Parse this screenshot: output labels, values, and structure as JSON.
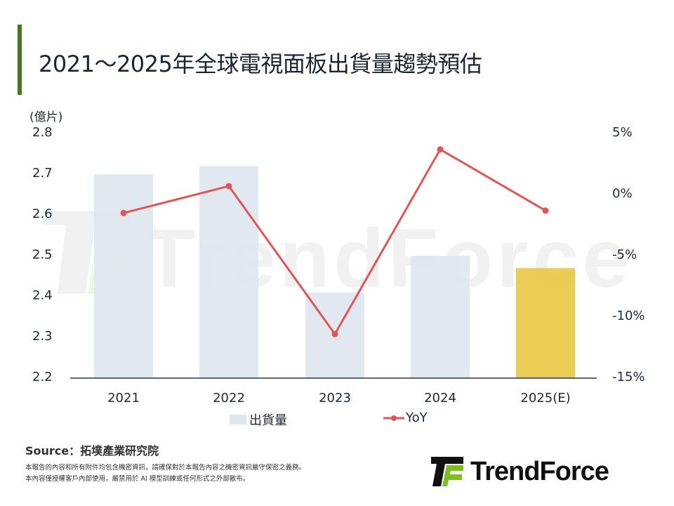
{
  "title": "2021～2025年全球電視面板出貨量趨勢預估",
  "colors": {
    "title_bar": "#3f7a1f",
    "bar_default": "#dfe6ef",
    "bar_estimate": "#e9c846",
    "yoy_line": "#e05656",
    "axis": "#2d3748"
  },
  "chart_data": {
    "type": "bar",
    "title": "2021～2025年全球電視面板出貨量趨勢預估",
    "xlabel": "",
    "ylabel": "(億片)",
    "y2label": "",
    "categories": [
      "2021",
      "2022",
      "2023",
      "2024",
      "2025(E)"
    ],
    "series": [
      {
        "name": "出貨量",
        "type": "bar",
        "axis": "left",
        "values": [
          2.7,
          2.72,
          2.41,
          2.5,
          2.47
        ]
      },
      {
        "name": "YoY",
        "type": "line",
        "axis": "right",
        "unit": "%",
        "values": [
          -1.5,
          0.7,
          -11.4,
          3.7,
          -1.3
        ]
      }
    ],
    "ylim": [
      2.2,
      2.8
    ],
    "y2lim": [
      -15,
      5
    ],
    "yticks": [
      "2.8",
      "2.7",
      "2.6",
      "2.5",
      "2.4",
      "2.3",
      "2.2"
    ],
    "y2ticks": [
      "5%",
      "0%",
      "-5%",
      "-10%",
      "-15%"
    ],
    "grid": false,
    "legend_position": "bottom",
    "highlighted_category": "2025(E)"
  },
  "legend": {
    "bar": "出貨量",
    "line": "YoY"
  },
  "footer": {
    "source": "Source：拓墣產業研究院",
    "disclaimer_1": "本報告的內容和所有附件均包含機密資訊，請確保對於本報告內容之機密資訊嚴守保密之義務。",
    "disclaimer_2": "本內容僅授權客戶內部使用，嚴禁用於 AI 模型訓練或任何形式之外部散布。"
  },
  "logo": {
    "text": "TrendForce",
    "watermark": "TrendForce"
  }
}
